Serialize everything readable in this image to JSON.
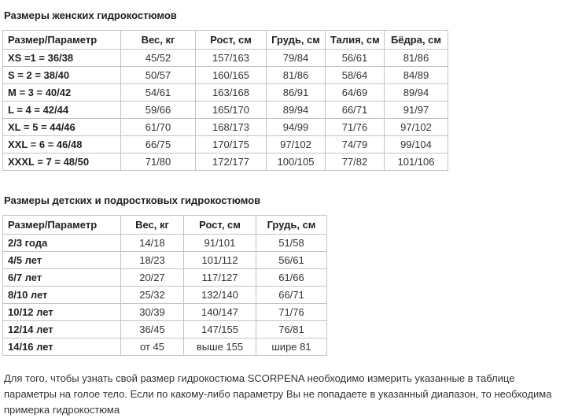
{
  "colors": {
    "border": "#c3c3c3",
    "text": "#333333",
    "heading": "#222222"
  },
  "women": {
    "title": "Размеры женских гидрокостюмов",
    "columns": [
      "Размер/Параметр",
      "Вес, кг",
      "Рост, см",
      "Грудь, см",
      "Талия, см",
      "Бёдра, см"
    ],
    "rows": [
      [
        "XS =1 = 36/38",
        "45/52",
        "157/163",
        "79/84",
        "56/61",
        "81/86"
      ],
      [
        "S = 2 = 38/40",
        "50/57",
        "160/165",
        "81/86",
        "58/64",
        "84/89"
      ],
      [
        "M = 3 = 40/42",
        "54/61",
        "163/168",
        "86/91",
        "64/69",
        "89/94"
      ],
      [
        "L = 4 = 42/44",
        "59/66",
        "165/170",
        "89/94",
        "66/71",
        "91/97"
      ],
      [
        "XL = 5 = 44/46",
        "61/70",
        "168/173",
        "94/99",
        "71/76",
        "97/102"
      ],
      [
        "XXL = 6 = 46/48",
        "66/75",
        "170/175",
        "97/102",
        "74/79",
        "99/104"
      ],
      [
        "XXXL = 7 = 48/50",
        "71/80",
        "172/177",
        "100/105",
        "77/82",
        "101/106"
      ]
    ]
  },
  "children": {
    "title": "Размеры детских и подростковых гидрокостюмов",
    "columns": [
      "Размер/Параметр",
      "Вес, кг",
      "Рост, см",
      "Грудь, см"
    ],
    "rows": [
      [
        "2/3 года",
        "14/18",
        "91/101",
        "51/58"
      ],
      [
        "4/5 лет",
        "18/23",
        "101/112",
        "56/61"
      ],
      [
        "6/7 лет",
        "20/27",
        "117/127",
        "61/66"
      ],
      [
        "8/10 лет",
        "25/32",
        "132/140",
        "66/71"
      ],
      [
        "10/12 лет",
        "30/39",
        "140/147",
        "71/76"
      ],
      [
        "12/14 лет",
        "36/45",
        "147/155",
        "76/81"
      ],
      [
        "14/16 лет",
        "от 45",
        "выше 155",
        "шире 81"
      ]
    ]
  },
  "footer_text": "Для того, чтобы узнать свой размер гидрокостюма SCORPENA необходимо измерить указанные в таблице параметры на голое тело. Если по какому-либо параметру Вы не попадаете в указанный диапазон, то необходима примерка гидрокостюма"
}
